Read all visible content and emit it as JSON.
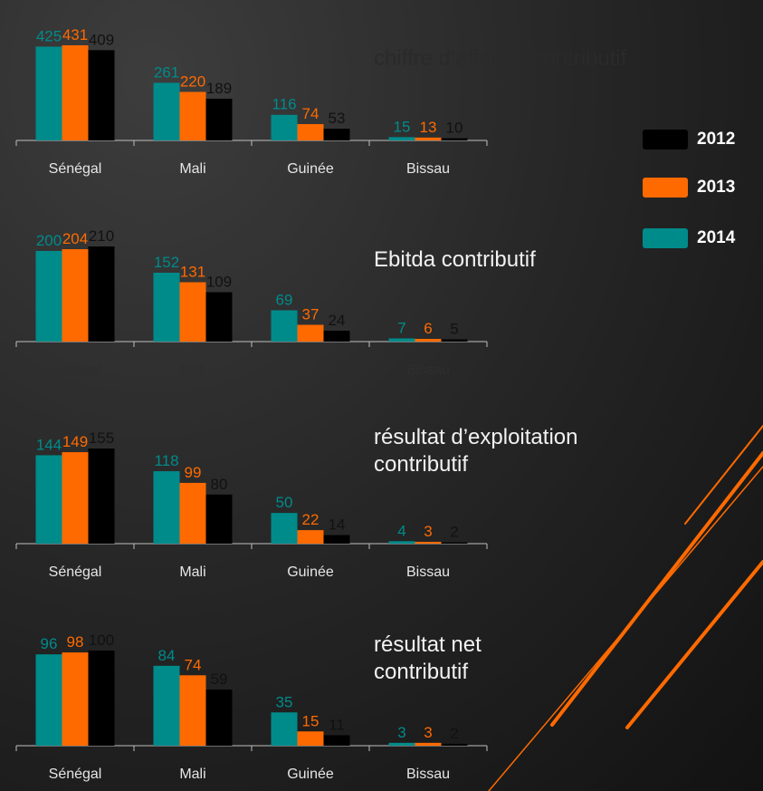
{
  "chart_data": [
    {
      "type": "bar",
      "title": "chiffre d’affaires contributif",
      "categories": [
        "Sénégal",
        "Mali",
        "Guinée",
        "Bissau"
      ],
      "series": [
        {
          "values": [
            409,
            189,
            53,
            10
          ]
        },
        {
          "values": [
            431,
            220,
            74,
            13
          ]
        },
        {
          "values": [
            425,
            261,
            116,
            15
          ]
        }
      ]
    },
    {
      "type": "bar",
      "title": "Ebitda contributif",
      "categories": [
        "Sénégal",
        "Mali",
        "Guinée",
        "Bissau"
      ],
      "series": [
        {
          "values": [
            210,
            109,
            24,
            5
          ]
        },
        {
          "values": [
            204,
            131,
            37,
            6
          ]
        },
        {
          "values": [
            200,
            152,
            69,
            7
          ]
        }
      ]
    },
    {
      "type": "bar",
      "title": "résultat d’exploitation contributif",
      "categories": [
        "Sénégal",
        "Mali",
        "Guinée",
        "Bissau"
      ],
      "series": [
        {
          "values": [
            155,
            80,
            14,
            2
          ]
        },
        {
          "values": [
            149,
            99,
            22,
            3
          ]
        },
        {
          "values": [
            144,
            118,
            50,
            4
          ]
        }
      ]
    },
    {
      "type": "bar",
      "title": "résultat net contributif",
      "categories": [
        "Sénégal",
        "Mali",
        "Guinée",
        "Bissau"
      ],
      "series": [
        {
          "values": [
            100,
            59,
            11,
            2
          ]
        },
        {
          "values": [
            98,
            74,
            15,
            3
          ]
        },
        {
          "values": [
            96,
            84,
            35,
            3
          ]
        }
      ]
    }
  ],
  "legend": [
    {
      "name": "2012",
      "color": "#000000"
    },
    {
      "name": "2013",
      "color": "#ff6a00"
    },
    {
      "name": "2014",
      "color": "#008b8b"
    }
  ]
}
